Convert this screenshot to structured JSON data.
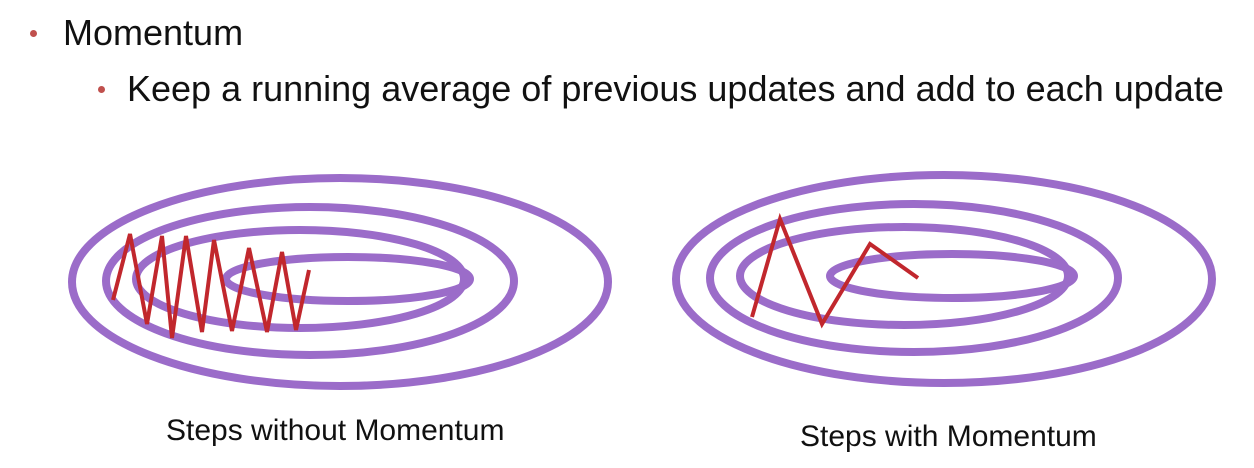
{
  "bullets": {
    "main": "Momentum",
    "sub": "Keep a running average of previous updates and add to each update"
  },
  "captions": {
    "left": "Steps without Momentum",
    "right": "Steps with Momentum"
  },
  "colors": {
    "bullet": "#c0504d",
    "contour": "#9b6cc9",
    "path": "#c1272d",
    "text": "#111111"
  }
}
